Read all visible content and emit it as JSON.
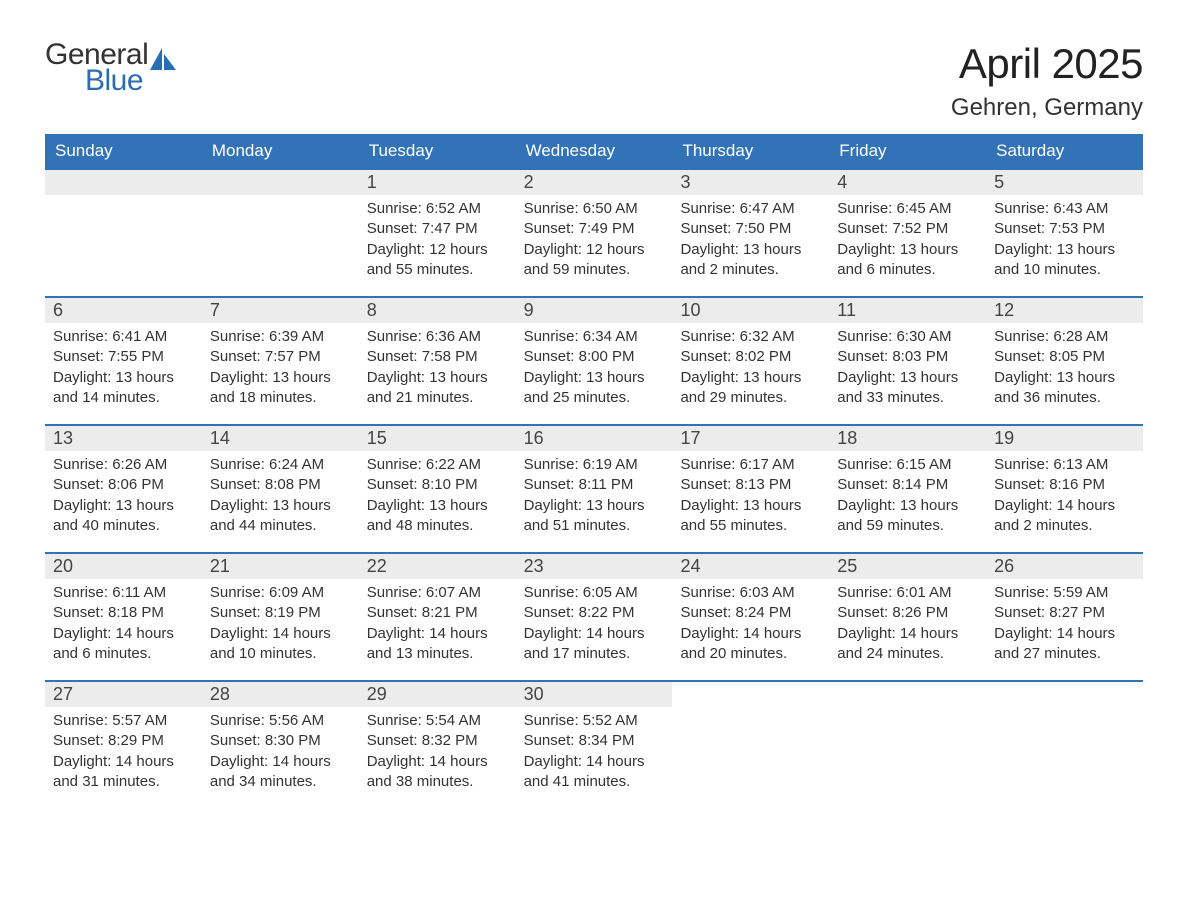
{
  "logo": {
    "text1": "General",
    "text2": "Blue",
    "sail_color": "#2b6db3",
    "text1_color": "#333333"
  },
  "title": "April 2025",
  "location": "Gehren, Germany",
  "colors": {
    "header_bg": "#3273b8",
    "header_fg": "#ffffff",
    "daynum_bg": "#ececec",
    "week_border": "#3273b8",
    "text": "#333333"
  },
  "calendar": {
    "days_of_week": [
      "Sunday",
      "Monday",
      "Tuesday",
      "Wednesday",
      "Thursday",
      "Friday",
      "Saturday"
    ],
    "weeks": [
      [
        null,
        null,
        {
          "n": "1",
          "sunrise": "6:52 AM",
          "sunset": "7:47 PM",
          "daylight": "12 hours and 55 minutes."
        },
        {
          "n": "2",
          "sunrise": "6:50 AM",
          "sunset": "7:49 PM",
          "daylight": "12 hours and 59 minutes."
        },
        {
          "n": "3",
          "sunrise": "6:47 AM",
          "sunset": "7:50 PM",
          "daylight": "13 hours and 2 minutes."
        },
        {
          "n": "4",
          "sunrise": "6:45 AM",
          "sunset": "7:52 PM",
          "daylight": "13 hours and 6 minutes."
        },
        {
          "n": "5",
          "sunrise": "6:43 AM",
          "sunset": "7:53 PM",
          "daylight": "13 hours and 10 minutes."
        }
      ],
      [
        {
          "n": "6",
          "sunrise": "6:41 AM",
          "sunset": "7:55 PM",
          "daylight": "13 hours and 14 minutes."
        },
        {
          "n": "7",
          "sunrise": "6:39 AM",
          "sunset": "7:57 PM",
          "daylight": "13 hours and 18 minutes."
        },
        {
          "n": "8",
          "sunrise": "6:36 AM",
          "sunset": "7:58 PM",
          "daylight": "13 hours and 21 minutes."
        },
        {
          "n": "9",
          "sunrise": "6:34 AM",
          "sunset": "8:00 PM",
          "daylight": "13 hours and 25 minutes."
        },
        {
          "n": "10",
          "sunrise": "6:32 AM",
          "sunset": "8:02 PM",
          "daylight": "13 hours and 29 minutes."
        },
        {
          "n": "11",
          "sunrise": "6:30 AM",
          "sunset": "8:03 PM",
          "daylight": "13 hours and 33 minutes."
        },
        {
          "n": "12",
          "sunrise": "6:28 AM",
          "sunset": "8:05 PM",
          "daylight": "13 hours and 36 minutes."
        }
      ],
      [
        {
          "n": "13",
          "sunrise": "6:26 AM",
          "sunset": "8:06 PM",
          "daylight": "13 hours and 40 minutes."
        },
        {
          "n": "14",
          "sunrise": "6:24 AM",
          "sunset": "8:08 PM",
          "daylight": "13 hours and 44 minutes."
        },
        {
          "n": "15",
          "sunrise": "6:22 AM",
          "sunset": "8:10 PM",
          "daylight": "13 hours and 48 minutes."
        },
        {
          "n": "16",
          "sunrise": "6:19 AM",
          "sunset": "8:11 PM",
          "daylight": "13 hours and 51 minutes."
        },
        {
          "n": "17",
          "sunrise": "6:17 AM",
          "sunset": "8:13 PM",
          "daylight": "13 hours and 55 minutes."
        },
        {
          "n": "18",
          "sunrise": "6:15 AM",
          "sunset": "8:14 PM",
          "daylight": "13 hours and 59 minutes."
        },
        {
          "n": "19",
          "sunrise": "6:13 AM",
          "sunset": "8:16 PM",
          "daylight": "14 hours and 2 minutes."
        }
      ],
      [
        {
          "n": "20",
          "sunrise": "6:11 AM",
          "sunset": "8:18 PM",
          "daylight": "14 hours and 6 minutes."
        },
        {
          "n": "21",
          "sunrise": "6:09 AM",
          "sunset": "8:19 PM",
          "daylight": "14 hours and 10 minutes."
        },
        {
          "n": "22",
          "sunrise": "6:07 AM",
          "sunset": "8:21 PM",
          "daylight": "14 hours and 13 minutes."
        },
        {
          "n": "23",
          "sunrise": "6:05 AM",
          "sunset": "8:22 PM",
          "daylight": "14 hours and 17 minutes."
        },
        {
          "n": "24",
          "sunrise": "6:03 AM",
          "sunset": "8:24 PM",
          "daylight": "14 hours and 20 minutes."
        },
        {
          "n": "25",
          "sunrise": "6:01 AM",
          "sunset": "8:26 PM",
          "daylight": "14 hours and 24 minutes."
        },
        {
          "n": "26",
          "sunrise": "5:59 AM",
          "sunset": "8:27 PM",
          "daylight": "14 hours and 27 minutes."
        }
      ],
      [
        {
          "n": "27",
          "sunrise": "5:57 AM",
          "sunset": "8:29 PM",
          "daylight": "14 hours and 31 minutes."
        },
        {
          "n": "28",
          "sunrise": "5:56 AM",
          "sunset": "8:30 PM",
          "daylight": "14 hours and 34 minutes."
        },
        {
          "n": "29",
          "sunrise": "5:54 AM",
          "sunset": "8:32 PM",
          "daylight": "14 hours and 38 minutes."
        },
        {
          "n": "30",
          "sunrise": "5:52 AM",
          "sunset": "8:34 PM",
          "daylight": "14 hours and 41 minutes."
        },
        null,
        null,
        null
      ]
    ],
    "labels": {
      "sunrise": "Sunrise: ",
      "sunset": "Sunset: ",
      "daylight": "Daylight: "
    }
  }
}
